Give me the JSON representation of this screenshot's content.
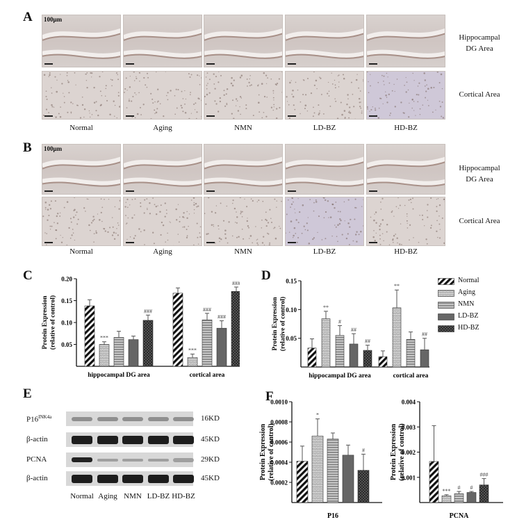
{
  "panels": {
    "A": "A",
    "B": "B",
    "C": "C",
    "D": "D",
    "E": "E",
    "F": "F"
  },
  "histology": {
    "scale_label": "100μm",
    "groups": [
      "Normal",
      "Aging",
      "NMN",
      "LD-BZ",
      "HD-BZ"
    ],
    "row_labels": {
      "hippo_line1": "Hippocampal",
      "hippo_line2": "DG Area",
      "cortex": "Cortical Area"
    }
  },
  "legend": {
    "items": [
      "Normal",
      "Aging",
      "NMN",
      "LD-BZ",
      "HD-BZ"
    ]
  },
  "western": {
    "rows": [
      {
        "label": "P16",
        "superscript": "INK4a",
        "kd": "16KD"
      },
      {
        "label": "β-actin",
        "kd": "45KD"
      },
      {
        "label": "PCNA",
        "kd": "29KD"
      },
      {
        "label": "β-actin",
        "kd": "45KD"
      }
    ],
    "lanes": [
      "Normal",
      "Aging",
      "NMN",
      "LD-BZ",
      "HD-BZ"
    ]
  },
  "chart_data": [
    {
      "panel": "C",
      "type": "bar",
      "ylabel": "Protein Expression (relative of control)",
      "ylabel_line1": "Protein Expression",
      "ylabel_line2": "(relative of control)",
      "ylim": [
        0,
        0.2
      ],
      "yticks": [
        "0.20",
        "0.15",
        "0.10",
        "0.05"
      ],
      "categories": [
        "hippocampal DG area",
        "cortical area"
      ],
      "series": [
        {
          "name": "Normal",
          "values": [
            0.138,
            0.167
          ],
          "errors": [
            0.014,
            0.012
          ],
          "sig": [
            "",
            ""
          ]
        },
        {
          "name": "Aging",
          "values": [
            0.05,
            0.02
          ],
          "errors": [
            0.006,
            0.008
          ],
          "sig": [
            "***",
            "***"
          ]
        },
        {
          "name": "NMN",
          "values": [
            0.066,
            0.106
          ],
          "errors": [
            0.014,
            0.015
          ],
          "sig": [
            "",
            "###"
          ]
        },
        {
          "name": "LD-BZ",
          "values": [
            0.061,
            0.087
          ],
          "errors": [
            0.008,
            0.017
          ],
          "sig": [
            "",
            "###"
          ]
        },
        {
          "name": "HD-BZ",
          "values": [
            0.105,
            0.171
          ],
          "errors": [
            0.012,
            0.01
          ],
          "sig": [
            "###",
            "###"
          ]
        }
      ]
    },
    {
      "panel": "D",
      "type": "bar",
      "ylabel": "Protein Expression (relative of control)",
      "ylabel_line1": "Protein Expression",
      "ylabel_line2": "(relative of control)",
      "ylim": [
        0,
        0.15
      ],
      "yticks": [
        "0.15",
        "0.10",
        "0.05"
      ],
      "categories": [
        "hippocampal DG area",
        "cortical area"
      ],
      "series": [
        {
          "name": "Normal",
          "values": [
            0.033,
            0.018
          ],
          "errors": [
            0.016,
            0.01
          ],
          "sig": [
            "",
            ""
          ]
        },
        {
          "name": "Aging",
          "values": [
            0.084,
            0.103
          ],
          "errors": [
            0.013,
            0.031
          ],
          "sig": [
            "**",
            "**"
          ]
        },
        {
          "name": "NMN",
          "values": [
            0.055,
            0.048
          ],
          "errors": [
            0.017,
            0.013
          ],
          "sig": [
            "#",
            ""
          ]
        },
        {
          "name": "LD-BZ",
          "values": [
            0.04,
            0.03
          ],
          "errors": [
            0.018,
            0.02
          ],
          "sig": [
            "##",
            "##"
          ]
        },
        {
          "name": "HD-BZ",
          "values": [
            0.029,
            0.019
          ],
          "errors": [
            0.009,
            0.013
          ],
          "sig": [
            "##",
            "##"
          ]
        }
      ]
    },
    {
      "panel": "F-left",
      "type": "bar",
      "ylabel": "Protein Expression (relative of control)",
      "ylabel_line1": "Protein Expression",
      "ylabel_line2": "(relative of control)",
      "ylim": [
        0,
        0.001
      ],
      "yticks": [
        "0.0010",
        "0.0008",
        "0.0006",
        "0.0004",
        "0.0002"
      ],
      "categories": [
        "P16"
      ],
      "series": [
        {
          "name": "Normal",
          "values": [
            0.00041
          ],
          "errors": [
            0.00015
          ],
          "sig": [
            ""
          ]
        },
        {
          "name": "Aging",
          "values": [
            0.00066
          ],
          "errors": [
            0.00017
          ],
          "sig": [
            "*"
          ]
        },
        {
          "name": "NMN",
          "values": [
            0.00063
          ],
          "errors": [
            6e-05
          ],
          "sig": [
            ""
          ]
        },
        {
          "name": "LD-BZ",
          "values": [
            0.00047
          ],
          "errors": [
            0.0001
          ],
          "sig": [
            ""
          ]
        },
        {
          "name": "HD-BZ",
          "values": [
            0.00032
          ],
          "errors": [
            0.00016
          ],
          "sig": [
            "#"
          ]
        }
      ]
    },
    {
      "panel": "F-right",
      "type": "bar",
      "ylabel": "Protein Expression (relative of control)",
      "ylabel_line1": "Protein Expression",
      "ylabel_line2": "(relative of control)",
      "ylim": [
        0,
        0.004
      ],
      "yticks": [
        "0.004",
        "0.003",
        "0.002",
        "0.001"
      ],
      "categories": [
        "PCNA"
      ],
      "series": [
        {
          "name": "Normal",
          "values": [
            0.00163
          ],
          "errors": [
            0.00142
          ],
          "sig": [
            ""
          ]
        },
        {
          "name": "Aging",
          "values": [
            0.00027
          ],
          "errors": [
            4e-05
          ],
          "sig": [
            "***"
          ]
        },
        {
          "name": "NMN",
          "values": [
            0.00035
          ],
          "errors": [
            9e-05
          ],
          "sig": [
            "#"
          ]
        },
        {
          "name": "LD-BZ",
          "values": [
            0.0004
          ],
          "errors": [
            4e-05
          ],
          "sig": [
            "#"
          ]
        },
        {
          "name": "HD-BZ",
          "values": [
            0.0007
          ],
          "errors": [
            0.00025
          ],
          "sig": [
            "###"
          ]
        }
      ]
    }
  ]
}
